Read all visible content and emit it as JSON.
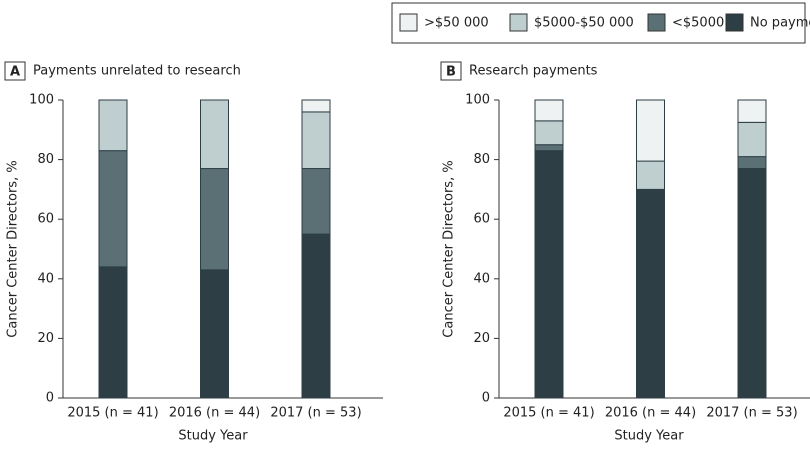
{
  "chart_data": [
    {
      "type": "stacked-bar",
      "label": "A",
      "title": "Payments unrelated to research",
      "xlabel": "Study Year",
      "ylabel": "Cancer Center Directors, %",
      "categories": [
        "2015 (n = 41)",
        "2016 (n = 44)",
        "2017 (n = 53)"
      ],
      "series": [
        {
          "name": ">$50 000",
          "color": "#eef2f3",
          "values": [
            0,
            0,
            4
          ]
        },
        {
          "name": "$5000-$50 000",
          "color": "#bfcfd0",
          "values": [
            17,
            23,
            19
          ]
        },
        {
          "name": "<$5000",
          "color": "#5a7075",
          "values": [
            39,
            34,
            22
          ]
        },
        {
          "name": "No payments",
          "color": "#2d3e45",
          "values": [
            44,
            43,
            55
          ]
        }
      ],
      "ylim": [
        0,
        100
      ],
      "yticks": [
        0,
        20,
        40,
        60,
        80,
        100
      ]
    },
    {
      "type": "stacked-bar",
      "label": "B",
      "title": "Research payments",
      "xlabel": "Study Year",
      "ylabel": "Cancer Center Directors, %",
      "categories": [
        "2015 (n = 41)",
        "2016 (n = 44)",
        "2017 (n = 53)"
      ],
      "series": [
        {
          "color": "#eef2f3",
          "values": [
            7,
            20.5,
            7.5
          ]
        },
        {
          "color": "#bfcfd0",
          "values": [
            8,
            9.5,
            11.5
          ]
        },
        {
          "color": "#5a7075",
          "values": [
            2,
            0,
            4
          ]
        },
        {
          "color": "#2d3e45",
          "values": [
            83,
            70,
            77
          ]
        }
      ],
      "ylim": [
        0,
        100
      ],
      "yticks": [
        0,
        20,
        40,
        60,
        80,
        100
      ]
    }
  ]
}
